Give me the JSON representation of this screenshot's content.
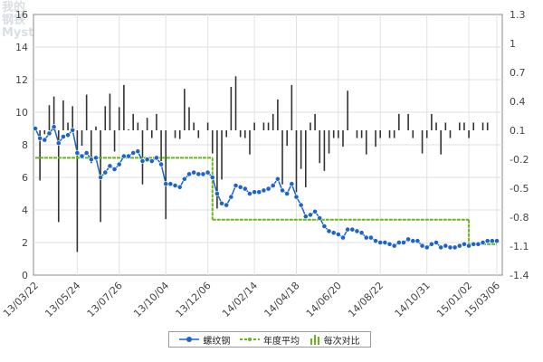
{
  "watermark": {
    "line1": "我的",
    "line2": "钢铁",
    "line3": "Mysteel.com"
  },
  "chart_data": {
    "type": "combo",
    "title": "",
    "left_axis": {
      "ylim": [
        0,
        16
      ],
      "ticks": [
        "0",
        "2",
        "4",
        "6",
        "8",
        "10",
        "12",
        "14",
        "16"
      ]
    },
    "right_axis": {
      "ylim": [
        -1.4,
        1.3
      ],
      "ticks": [
        "-1.4",
        "-1.1",
        "-0.8",
        "-0.5",
        "-0.2",
        "0.1",
        "0.4",
        "0.7",
        "1",
        "1.3"
      ]
    },
    "x_tick_labels": [
      "13/03/22",
      "13/05/24",
      "13/07/26",
      "13/10/04",
      "13/12/06",
      "14/02/14",
      "14/04/18",
      "14/06/20",
      "14/08/22",
      "14/10/31",
      "15/01/02",
      "15/03/06"
    ],
    "grid": true,
    "legend_position": "bottom",
    "series": [
      {
        "name": "螺纹钢",
        "type": "line",
        "axis": "left",
        "color": "#1e64c8",
        "values": [
          9.0,
          8.4,
          8.3,
          8.7,
          9.1,
          8.1,
          8.5,
          8.6,
          8.9,
          7.5,
          7.3,
          7.5,
          7.1,
          7.2,
          6.0,
          6.3,
          6.7,
          6.5,
          6.8,
          7.3,
          7.3,
          7.5,
          7.6,
          7.0,
          7.1,
          7.0,
          7.2,
          6.8,
          5.6,
          5.6,
          5.5,
          5.4,
          5.9,
          6.2,
          6.3,
          6.2,
          6.2,
          6.3,
          6.0,
          5.0,
          4.4,
          4.3,
          4.8,
          5.5,
          5.4,
          5.3,
          5.0,
          5.1,
          5.1,
          5.2,
          5.3,
          5.5,
          5.9,
          5.2,
          5.0,
          5.6,
          4.8,
          4.3,
          3.6,
          3.7,
          3.9,
          3.5,
          3.0,
          2.7,
          2.6,
          2.5,
          2.3,
          2.8,
          2.8,
          2.7,
          2.6,
          2.3,
          2.3,
          2.1,
          2.0,
          2.0,
          1.9,
          1.8,
          2.0,
          2.0,
          2.2,
          2.1,
          2.1,
          1.8,
          1.7,
          1.9,
          2.0,
          1.7,
          1.8,
          1.7,
          1.7,
          1.8,
          1.9,
          1.8,
          1.9,
          1.9,
          2.0,
          2.1,
          2.1,
          2.1
        ]
      },
      {
        "name": "年度平均",
        "type": "step",
        "axis": "left",
        "color": "#66b81a",
        "segments": [
          {
            "from": "13/03/22",
            "to": "13/12/27",
            "value": 7.2
          },
          {
            "from": "13/12/27",
            "to": "15/01/02",
            "value": 3.4
          },
          {
            "from": "15/01/02",
            "to": "15/03/13",
            "value": 1.9
          }
        ]
      },
      {
        "name": "每次对比",
        "type": "bar",
        "axis": "right",
        "color": "#333333",
        "values": [
          0.0,
          -0.52,
          -0.04,
          0.26,
          0.35,
          -0.95,
          0.31,
          0.08,
          0.25,
          -1.26,
          -0.16,
          0.37,
          -0.34,
          0.04,
          -0.95,
          0.25,
          0.38,
          -0.22,
          0.24,
          0.47,
          0.01,
          0.17,
          0.08,
          -0.56,
          0.13,
          -0.08,
          0.17,
          -0.32,
          -0.92,
          0.0,
          -0.08,
          -0.09,
          0.43,
          0.24,
          0.08,
          -0.08,
          0.0,
          0.08,
          -0.24,
          -0.81,
          -0.51,
          -0.07,
          0.45,
          0.56,
          -0.07,
          -0.08,
          -0.25,
          0.08,
          0.0,
          0.08,
          0.08,
          0.17,
          0.32,
          -0.56,
          -0.16,
          0.47,
          -0.64,
          -0.4,
          -0.59,
          0.08,
          0.17,
          -0.34,
          -0.42,
          -0.24,
          -0.08,
          -0.08,
          -0.17,
          0.41,
          0.0,
          -0.08,
          -0.08,
          -0.25,
          0.0,
          -0.17,
          -0.08,
          0.0,
          -0.08,
          -0.08,
          0.17,
          0.0,
          0.17,
          -0.08,
          0.0,
          -0.24,
          -0.08,
          0.17,
          0.08,
          -0.25,
          0.08,
          -0.08,
          0.0,
          0.08,
          0.08,
          -0.08,
          0.08,
          0.0,
          0.08,
          0.08,
          0.0,
          0.0
        ]
      }
    ]
  }
}
